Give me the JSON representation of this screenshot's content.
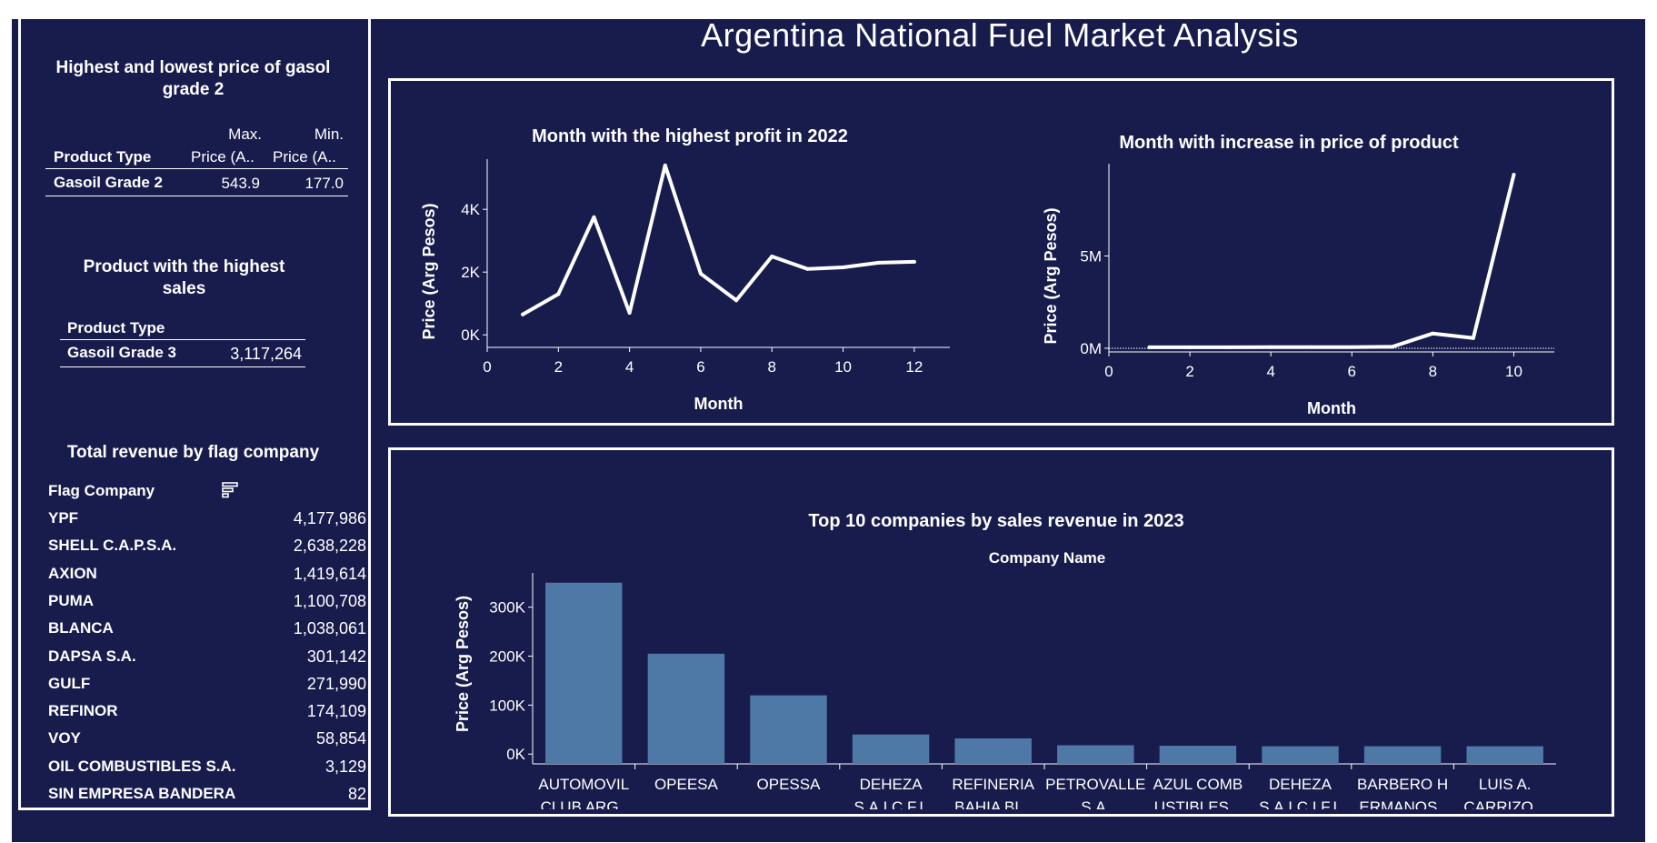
{
  "dashboard": {
    "title": "Argentina National Fuel Market Analysis"
  },
  "left": {
    "price_table": {
      "title_line1": "Highest and lowest price of gasol",
      "title_line2": "grade 2",
      "col_product": "Product Type",
      "col_max_line1": "Max.",
      "col_max_line2": "Price (A..",
      "col_min_line1": "Min.",
      "col_min_line2": "Price (A..",
      "row_product": "Gasoil Grade 2",
      "row_max": "543.9",
      "row_min": "177.0"
    },
    "sales_table": {
      "title_line1": "Product with the highest",
      "title_line2": "sales",
      "col_product": "Product Type",
      "row_product": "Gasoil Grade 3",
      "row_value": "3,117,264"
    },
    "revenue_table": {
      "title": "Total revenue by flag company",
      "col_header": "Flag Company",
      "sort_icon": "sort-descending-icon",
      "rows": [
        {
          "name": "YPF",
          "value": "4,177,986"
        },
        {
          "name": "SHELL C.A.P.S.A.",
          "value": "2,638,228"
        },
        {
          "name": "AXION",
          "value": "1,419,614"
        },
        {
          "name": "PUMA",
          "value": "1,100,708"
        },
        {
          "name": "BLANCA",
          "value": "1,038,061"
        },
        {
          "name": "DAPSA S.A.",
          "value": "301,142"
        },
        {
          "name": "GULF",
          "value": "271,990"
        },
        {
          "name": "REFINOR",
          "value": "174,109"
        },
        {
          "name": "VOY",
          "value": "58,854"
        },
        {
          "name": "OIL COMBUSTIBLES S.A.",
          "value": "3,129"
        },
        {
          "name": "SIN EMPRESA BANDERA",
          "value": "82"
        }
      ]
    }
  },
  "colors": {
    "background": "#181c4d",
    "line": "#ffffff",
    "bar": "#4e79a7"
  },
  "chart_data": [
    {
      "type": "line",
      "title": "Month with the highest profit in 2022",
      "xlabel": "Month",
      "ylabel": "Price (Arg Pesos)",
      "x": [
        1,
        2,
        3,
        4,
        5,
        6,
        7,
        8,
        9,
        10,
        11,
        12
      ],
      "y": [
        650,
        1300,
        3750,
        700,
        5400,
        1950,
        1100,
        2500,
        2100,
        2150,
        2300,
        2330
      ],
      "xlim": [
        0,
        13
      ],
      "ylim": [
        -400,
        5600
      ],
      "xticks": [
        0,
        2,
        4,
        6,
        8,
        10,
        12
      ],
      "xtick_labels": [
        "0",
        "2",
        "4",
        "6",
        "8",
        "10",
        "12"
      ],
      "yticks": [
        0,
        2000,
        4000
      ],
      "ytick_labels": [
        "0K",
        "2K",
        "4K"
      ]
    },
    {
      "type": "line",
      "title": "Month with increase in price of product",
      "xlabel": "Month",
      "ylabel": "Price (Arg Pesos)",
      "x": [
        1,
        2,
        3,
        4,
        5,
        6,
        7,
        8,
        9,
        10
      ],
      "y": [
        50000,
        50000,
        50000,
        60000,
        60000,
        60000,
        80000,
        800000,
        550000,
        9400000
      ],
      "xlim": [
        0,
        11
      ],
      "ylim": [
        -200000,
        10000000
      ],
      "xticks": [
        0,
        2,
        4,
        6,
        8,
        10
      ],
      "xtick_labels": [
        "0",
        "2",
        "4",
        "6",
        "8",
        "10"
      ],
      "yticks": [
        0,
        5000000
      ],
      "ytick_labels": [
        "0M",
        "5M"
      ],
      "zero_line": "dotted"
    },
    {
      "type": "bar",
      "title": "Top 10 companies by sales revenue in 2023",
      "subtitle": "Company Name",
      "ylabel": "Price (Arg Pesos)",
      "categories": [
        [
          "AUTOMOVIL",
          "CLUB ARG.."
        ],
        [
          "OPEESA",
          ""
        ],
        [
          "OPESSA",
          ""
        ],
        [
          "DEHEZA",
          "S.A.I.C.F.I."
        ],
        [
          "REFINERIA",
          "BAHIA BL.."
        ],
        [
          "PETROVALLE",
          "S.A."
        ],
        [
          "AZUL COMB",
          "USTIBLES .."
        ],
        [
          "DEHEZA",
          "S.A.I.C.I.F.I."
        ],
        [
          "BARBERO H",
          "ERMANOS.."
        ],
        [
          "LUIS A.",
          "CARRIZO .."
        ]
      ],
      "values": [
        350000,
        205000,
        120000,
        40000,
        32000,
        18000,
        17000,
        16000,
        16000,
        16000
      ],
      "ylim": [
        -20000,
        370000
      ],
      "yticks": [
        0,
        100000,
        200000,
        300000
      ],
      "ytick_labels": [
        "0K",
        "100K",
        "200K",
        "300K"
      ]
    }
  ]
}
